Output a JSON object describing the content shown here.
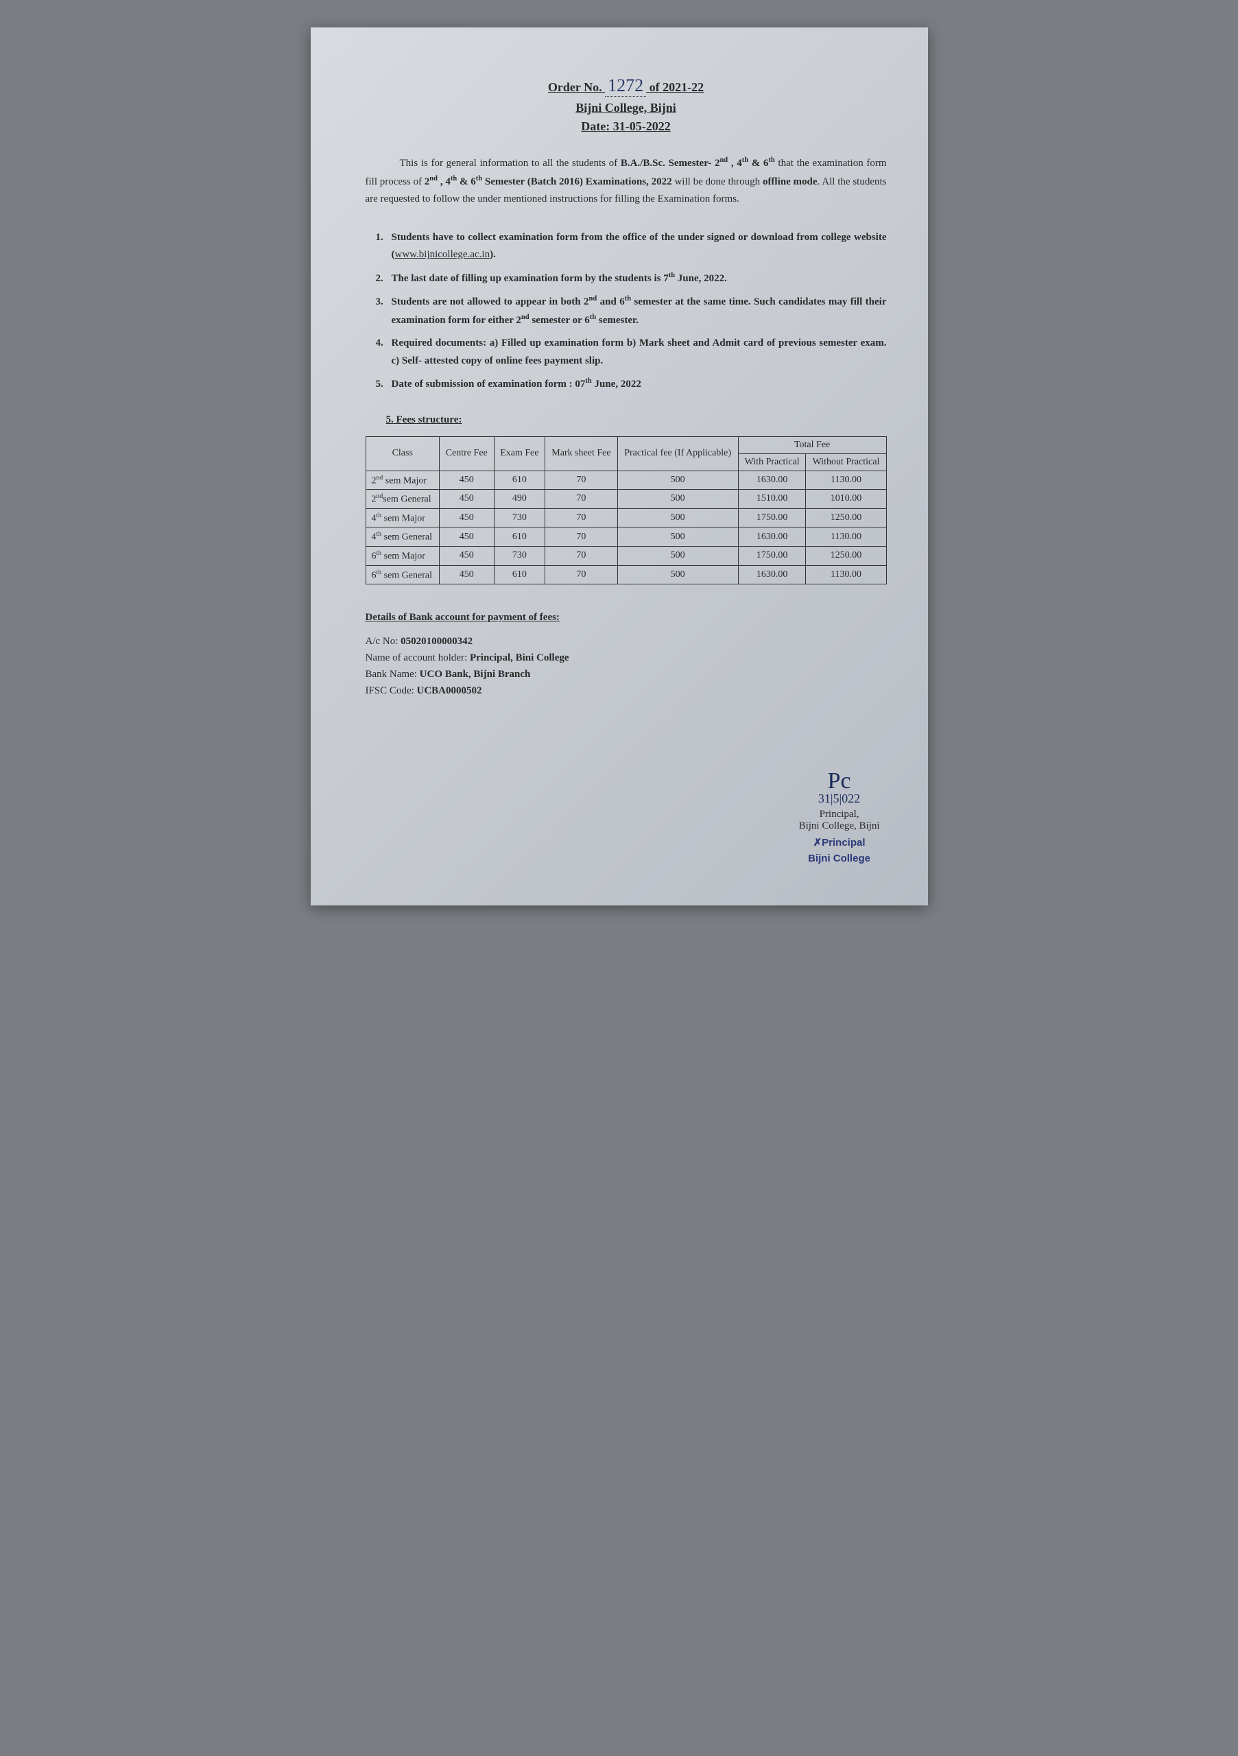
{
  "header": {
    "order_prefix": "Order No.",
    "order_number": "1272",
    "order_suffix": "of 2021-22",
    "college": "Bijni College, Bijni",
    "date_label": "Date: 31-05-2022"
  },
  "intro": "This is for general information to all the students of <b>B.A./B.Sc. Semester- 2<sup>nd</sup> , 4<sup>th</sup> & 6<sup>th</sup></b> that the examination form fill process of <b>2<sup>nd</sup> , 4<sup>th</sup> & 6<sup>th</sup> Semester (Batch 2016) Examinations, 2022</b> will be done through <b>offline mode</b>. All the students are requested to follow the under mentioned instructions for filling the Examination forms.",
  "instructions": [
    "Students have to collect examination form from the office of the under signed or download from college website (<span class='website-link'>www.bijnicollege.ac.in</span>).",
    "The last date of filling up examination form by the students is 7<sup>th</sup> June, 2022.",
    "Students are not allowed to appear in both 2<sup>nd</sup> and 6<sup>th</sup> semester at the same time. Such candidates may fill their examination form for either 2<sup>nd</sup> semester or 6<sup>th</sup> semester.",
    "Required documents: a) Filled up examination form b) Mark sheet and Admit card of previous semester exam. c) Self- attested copy of online fees payment slip.",
    "Date of submission of examination form : 07<sup>th</sup> June, 2022"
  ],
  "fees_heading": "5. Fees structure:",
  "fees_table": {
    "columns": {
      "class": "Class",
      "centre_fee": "Centre Fee",
      "exam_fee": "Exam Fee",
      "marksheet_fee": "Mark sheet Fee",
      "practical_fee": "Practical fee (If Applicable)",
      "total_fee": "Total Fee",
      "with_practical": "With Practical",
      "without_practical": "Without Practical"
    },
    "rows": [
      {
        "class": "2<sup>nd</sup> sem Major",
        "centre": "450",
        "exam": "610",
        "marksheet": "70",
        "practical": "500",
        "with": "1630.00",
        "without": "1130.00"
      },
      {
        "class": "2<sup>nd</sup>sem General",
        "centre": "450",
        "exam": "490",
        "marksheet": "70",
        "practical": "500",
        "with": "1510.00",
        "without": "1010.00"
      },
      {
        "class": "4<sup>th</sup> sem Major",
        "centre": "450",
        "exam": "730",
        "marksheet": "70",
        "practical": "500",
        "with": "1750.00",
        "without": "1250.00"
      },
      {
        "class": "4<sup>th</sup> sem General",
        "centre": "450",
        "exam": "610",
        "marksheet": "70",
        "practical": "500",
        "with": "1630.00",
        "without": "1130.00"
      },
      {
        "class": "6<sup>th</sup> sem Major",
        "centre": "450",
        "exam": "730",
        "marksheet": "70",
        "practical": "500",
        "with": "1750.00",
        "without": "1250.00"
      },
      {
        "class": "6<sup>th</sup> sem General",
        "centre": "450",
        "exam": "610",
        "marksheet": "70",
        "practical": "500",
        "with": "1630.00",
        "without": "1130.00"
      }
    ]
  },
  "bank": {
    "heading": "Details of Bank account for payment of fees:",
    "ac_no_label": "A/c No: ",
    "ac_no": "05020100000342",
    "holder_label": "Name of account holder: ",
    "holder": "Principal, Bini College",
    "bank_label": "Bank Name: ",
    "bank_name": "UCO Bank, Bijni Branch",
    "ifsc_label": "IFSC Code: ",
    "ifsc": "UCBA0000502"
  },
  "signature": {
    "scribble": "Pc",
    "sig_date": "31|5|022",
    "line1": "Principal,",
    "line2": "Bijni College, Bijni",
    "stamp1": "Principal",
    "stamp2": "Bijni College"
  }
}
